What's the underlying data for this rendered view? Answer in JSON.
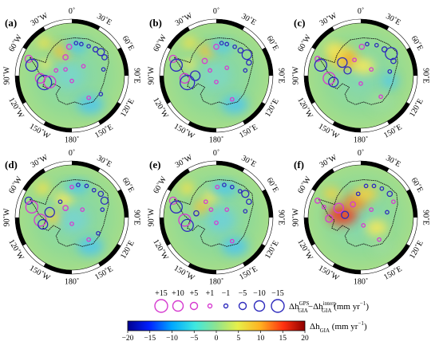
{
  "panels": [
    {
      "label": "(a)",
      "bg": [
        [
          "#f4e24a",
          -0.52,
          -0.62,
          0.14,
          0.11
        ],
        [
          "#f2c63a",
          -0.18,
          -0.47,
          0.18,
          0.15
        ],
        [
          "#f7e85a",
          -0.5,
          -0.22,
          0.12,
          0.1
        ],
        [
          "#4fc9ea",
          0.08,
          -0.55,
          0.22,
          0.12
        ],
        [
          "#53c7e8",
          0.35,
          0.55,
          0.25,
          0.18
        ],
        [
          "#7ad6c8",
          -0.05,
          0.0,
          0.25,
          0.22
        ]
      ],
      "circles": [
        [
          -0.82,
          -0.32,
          "m",
          3
        ],
        [
          -0.76,
          -0.2,
          "b",
          5
        ],
        [
          -0.6,
          0.05,
          "m",
          4
        ],
        [
          -0.52,
          0.13,
          "b",
          6
        ],
        [
          -0.42,
          0.12,
          "m",
          5
        ],
        [
          -0.3,
          -0.1,
          "m",
          1
        ],
        [
          -0.12,
          -0.35,
          "m",
          2
        ],
        [
          -0.12,
          -0.12,
          "m",
          1
        ],
        [
          -0.05,
          -0.55,
          "m",
          2
        ],
        [
          0.08,
          -0.62,
          "b",
          1
        ],
        [
          0.18,
          -0.6,
          "b",
          1
        ],
        [
          0.32,
          -0.56,
          "b",
          1
        ],
        [
          0.45,
          -0.5,
          "b",
          2
        ],
        [
          0.55,
          -0.45,
          "b",
          3
        ],
        [
          0.62,
          -0.35,
          "b",
          2
        ],
        [
          0.6,
          -0.12,
          "b",
          1
        ],
        [
          0.22,
          -0.18,
          "m",
          1
        ],
        [
          0.0,
          0.1,
          "m",
          1
        ],
        [
          0.32,
          0.42,
          "m",
          1
        ],
        [
          0.55,
          0.35,
          "b",
          1
        ]
      ]
    },
    {
      "label": "(b)",
      "bg": [
        [
          "#f4e24a",
          -0.5,
          -0.62,
          0.14,
          0.11
        ],
        [
          "#f2c63a",
          -0.18,
          -0.47,
          0.16,
          0.13
        ],
        [
          "#f7e85a",
          -0.5,
          -0.22,
          0.12,
          0.1
        ],
        [
          "#55cbe8",
          0.1,
          -0.55,
          0.22,
          0.12
        ],
        [
          "#53c7e8",
          0.35,
          0.55,
          0.25,
          0.18
        ],
        [
          "#80d8bf",
          0.0,
          0.0,
          0.25,
          0.22
        ]
      ],
      "circles": [
        [
          -0.82,
          -0.32,
          "m",
          3
        ],
        [
          -0.76,
          -0.2,
          "b",
          5
        ],
        [
          -0.6,
          0.05,
          "m",
          4
        ],
        [
          -0.55,
          0.13,
          "b",
          6
        ],
        [
          -0.4,
          0.0,
          "b",
          4
        ],
        [
          -0.22,
          -0.28,
          "m",
          2
        ],
        [
          -0.12,
          -0.1,
          "m",
          1
        ],
        [
          0.0,
          -0.55,
          "m",
          2
        ],
        [
          0.1,
          -0.62,
          "b",
          1
        ],
        [
          0.2,
          -0.6,
          "b",
          1
        ],
        [
          0.35,
          -0.55,
          "b",
          1
        ],
        [
          0.46,
          -0.48,
          "b",
          2
        ],
        [
          0.58,
          -0.4,
          "b",
          4
        ],
        [
          0.62,
          -0.25,
          "b",
          2
        ],
        [
          0.55,
          -0.1,
          "b",
          1
        ],
        [
          0.2,
          -0.15,
          "m",
          1
        ],
        [
          0.0,
          0.12,
          "m",
          1
        ],
        [
          0.3,
          0.45,
          "m",
          1
        ]
      ]
    },
    {
      "label": "(c)",
      "bg": [
        [
          "#f4d03f",
          -0.35,
          -0.35,
          0.28,
          0.22
        ],
        [
          "#f09a2c",
          -0.2,
          -0.28,
          0.14,
          0.1
        ],
        [
          "#f7e85a",
          -0.52,
          -0.5,
          0.16,
          0.12
        ],
        [
          "#f7e85a",
          0.05,
          -0.18,
          0.22,
          0.16
        ],
        [
          "#9cdc9a",
          0.4,
          0.5,
          0.25,
          0.18
        ],
        [
          "#56cbe6",
          0.55,
          0.1,
          0.16,
          0.14
        ]
      ],
      "circles": [
        [
          -0.82,
          -0.32,
          "m",
          2
        ],
        [
          -0.76,
          -0.2,
          "b",
          5
        ],
        [
          -0.6,
          0.05,
          "m",
          5
        ],
        [
          -0.52,
          0.12,
          "b",
          4
        ],
        [
          -0.35,
          -0.25,
          "b",
          4
        ],
        [
          -0.25,
          -0.1,
          "b",
          3
        ],
        [
          -0.12,
          -0.3,
          "m",
          1
        ],
        [
          0.02,
          -0.55,
          "m",
          2
        ],
        [
          0.12,
          -0.6,
          "b",
          1
        ],
        [
          0.3,
          -0.58,
          "b",
          1
        ],
        [
          0.45,
          -0.5,
          "b",
          2
        ],
        [
          0.58,
          -0.42,
          "b",
          5
        ],
        [
          0.62,
          -0.28,
          "b",
          2
        ],
        [
          0.55,
          -0.08,
          "b",
          1
        ],
        [
          0.2,
          -0.12,
          "m",
          1
        ],
        [
          0.0,
          0.15,
          "m",
          1
        ],
        [
          0.38,
          0.4,
          "m",
          1
        ]
      ]
    },
    {
      "label": "(d)",
      "bg": [
        [
          "#f4e24a",
          -0.55,
          -0.55,
          0.14,
          0.12
        ],
        [
          "#f7e85a",
          -0.15,
          -0.35,
          0.18,
          0.14
        ],
        [
          "#f4d03f",
          -0.35,
          0.0,
          0.16,
          0.12
        ],
        [
          "#4fc9ea",
          0.1,
          -0.58,
          0.24,
          0.12
        ],
        [
          "#53c7e8",
          0.35,
          0.55,
          0.25,
          0.18
        ],
        [
          "#79d4cc",
          0.05,
          0.05,
          0.25,
          0.22
        ]
      ],
      "circles": [
        [
          -0.82,
          -0.32,
          "b",
          3
        ],
        [
          -0.76,
          -0.2,
          "m",
          5
        ],
        [
          -0.6,
          0.05,
          "m",
          5
        ],
        [
          -0.55,
          0.13,
          "b",
          4
        ],
        [
          -0.42,
          -0.1,
          "b",
          4
        ],
        [
          -0.22,
          -0.3,
          "b",
          1
        ],
        [
          -0.12,
          -0.18,
          "m",
          2
        ],
        [
          0.0,
          -0.58,
          "m",
          1
        ],
        [
          0.12,
          -0.62,
          "b",
          1
        ],
        [
          0.28,
          -0.6,
          "b",
          1
        ],
        [
          0.42,
          -0.52,
          "b",
          1
        ],
        [
          0.55,
          -0.45,
          "b",
          2
        ],
        [
          0.62,
          -0.32,
          "b",
          3
        ],
        [
          0.58,
          -0.15,
          "b",
          1
        ],
        [
          0.2,
          -0.15,
          "m",
          1
        ],
        [
          0.0,
          0.12,
          "m",
          1
        ],
        [
          0.32,
          0.42,
          "m",
          1
        ],
        [
          0.5,
          0.3,
          "b",
          1
        ]
      ]
    },
    {
      "label": "(e)",
      "bg": [
        [
          "#f4e24a",
          -0.55,
          -0.55,
          0.14,
          0.12
        ],
        [
          "#f2c63a",
          -0.28,
          -0.2,
          0.16,
          0.13
        ],
        [
          "#f7e85a",
          -0.1,
          -0.4,
          0.16,
          0.12
        ],
        [
          "#4fc9ea",
          0.15,
          -0.55,
          0.26,
          0.13
        ],
        [
          "#53c7e8",
          0.35,
          0.55,
          0.25,
          0.18
        ],
        [
          "#6fd1d4",
          0.1,
          0.05,
          0.25,
          0.22
        ]
      ],
      "circles": [
        [
          -0.82,
          -0.32,
          "m",
          3
        ],
        [
          -0.76,
          -0.2,
          "b",
          5
        ],
        [
          -0.6,
          0.05,
          "m",
          5
        ],
        [
          -0.55,
          0.15,
          "b",
          5
        ],
        [
          -0.38,
          -0.08,
          "b",
          2
        ],
        [
          -0.2,
          -0.3,
          "m",
          1
        ],
        [
          -0.1,
          -0.15,
          "m",
          1
        ],
        [
          0.02,
          -0.58,
          "m",
          1
        ],
        [
          0.15,
          -0.62,
          "b",
          1
        ],
        [
          0.3,
          -0.58,
          "b",
          1
        ],
        [
          0.45,
          -0.5,
          "b",
          1
        ],
        [
          0.55,
          -0.45,
          "b",
          3
        ],
        [
          0.62,
          -0.3,
          "b",
          2
        ],
        [
          0.55,
          -0.12,
          "b",
          1
        ],
        [
          0.2,
          -0.15,
          "m",
          1
        ],
        [
          0.0,
          0.1,
          "m",
          1
        ],
        [
          0.3,
          0.45,
          "m",
          1
        ]
      ]
    },
    {
      "label": "(f)",
      "bg": [
        [
          "#e8432a",
          -0.35,
          -0.05,
          0.28,
          0.2
        ],
        [
          "#f08a2a",
          -0.1,
          -0.3,
          0.22,
          0.16
        ],
        [
          "#f4d03f",
          0.1,
          -0.45,
          0.22,
          0.14
        ],
        [
          "#f4d03f",
          -0.55,
          -0.45,
          0.16,
          0.12
        ],
        [
          "#f7e85a",
          0.3,
          0.2,
          0.2,
          0.16
        ],
        [
          "#9cdc9a",
          0.4,
          0.55,
          0.2,
          0.16
        ]
      ],
      "circles": [
        [
          -0.82,
          -0.32,
          "m",
          2
        ],
        [
          -0.7,
          -0.2,
          "m",
          1
        ],
        [
          -0.6,
          0.02,
          "m",
          3
        ],
        [
          -0.42,
          -0.18,
          "m",
          4
        ],
        [
          -0.3,
          -0.05,
          "b",
          3
        ],
        [
          -0.15,
          -0.25,
          "m",
          2
        ],
        [
          -0.05,
          -0.45,
          "b",
          1
        ],
        [
          0.1,
          -0.6,
          "b",
          1
        ],
        [
          0.25,
          -0.6,
          "b",
          1
        ],
        [
          0.4,
          -0.55,
          "b",
          1
        ],
        [
          0.55,
          -0.45,
          "b",
          2
        ],
        [
          0.62,
          -0.3,
          "m",
          1
        ],
        [
          0.5,
          -0.1,
          "b",
          1
        ],
        [
          0.2,
          -0.15,
          "m",
          1
        ],
        [
          0.05,
          0.15,
          "m",
          1
        ],
        [
          0.35,
          0.42,
          "m",
          1
        ]
      ]
    }
  ],
  "graticule_labels": {
    "top": "0˚",
    "items": [
      {
        "text": "30˚W",
        "side": "tl"
      },
      {
        "text": "30˚E",
        "side": "tr"
      },
      {
        "text": "60˚W",
        "side": "l1"
      },
      {
        "text": "60˚E",
        "side": "r1"
      },
      {
        "text": "90˚W",
        "side": "l2"
      },
      {
        "text": "90˚E",
        "side": "r2"
      },
      {
        "text": "120˚W",
        "side": "l3"
      },
      {
        "text": "120˚E",
        "side": "r3"
      },
      {
        "text": "150˚W",
        "side": "bl"
      },
      {
        "text": "150˚E",
        "side": "br"
      },
      {
        "text": "180˚",
        "side": "bottom"
      }
    ]
  },
  "legend": {
    "circle_values": [
      "+15",
      "+10",
      "+5",
      "+1",
      "−1",
      "−5",
      "−10",
      "−15"
    ],
    "circle_label_main": "Δh",
    "circle_label_sub1": "GIA",
    "circle_label_sup1": "GPS",
    "circle_label_minus": "−Δh",
    "circle_label_sub2": "GIA",
    "circle_label_sup2": "interp",
    "circle_label_units": "(mm yr",
    "circle_label_units_sup": "−1",
    "circle_label_units_close": ")",
    "colorbar_ticks": [
      "−20",
      "−15",
      "−10",
      "−5",
      "0",
      "5",
      "10",
      "15",
      "20"
    ],
    "colorbar_label_main": "Δh",
    "colorbar_label_sub": "GIA",
    "colorbar_label_units": "(mm yr",
    "colorbar_label_units_sup": "−1",
    "colorbar_label_units_close": ")"
  },
  "colors": {
    "positive_circle": "#d63bd0",
    "negative_circle": "#2e2bbd",
    "background_green": "#8ed79a",
    "coastline": "#111111",
    "colorbar": [
      "#00008f",
      "#0020ff",
      "#00a8ff",
      "#3ee8e0",
      "#8fe38f",
      "#e6f04a",
      "#ffb020",
      "#ff3010",
      "#8f0000"
    ]
  }
}
